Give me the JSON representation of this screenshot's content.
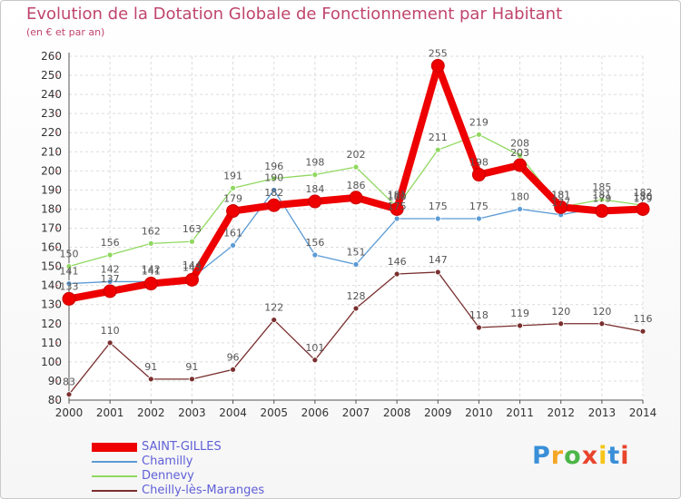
{
  "chart_data": {
    "type": "line",
    "title": "Evolution de la Dotation Globale de Fonctionnement par Habitant",
    "subtitle": "(en € et par an)",
    "x": [
      "2000",
      "2001",
      "2002",
      "2003",
      "2004",
      "2005",
      "2006",
      "2007",
      "2008",
      "2009",
      "2010",
      "2011",
      "2012",
      "2013",
      "2014"
    ],
    "ylim": [
      80,
      260
    ],
    "yticks": [
      80,
      90,
      100,
      110,
      120,
      130,
      140,
      150,
      160,
      170,
      180,
      190,
      200,
      210,
      220,
      230,
      240,
      250,
      260
    ],
    "grid": true,
    "legend_position": "bottom-left",
    "series": [
      {
        "name": "SAINT-GILLES",
        "color": "#ee0000",
        "values": [
          133,
          137,
          141,
          143,
          179,
          182,
          184,
          186,
          180,
          255,
          198,
          203,
          181,
          179,
          180
        ]
      },
      {
        "name": "Chamilly",
        "color": "#5b9bd5",
        "values": [
          141,
          142,
          142,
          144,
          161,
          190,
          156,
          151,
          175,
          175,
          175,
          180,
          177,
          181,
          179
        ]
      },
      {
        "name": "Dennevy",
        "color": "#90d860",
        "values": [
          150,
          156,
          162,
          163,
          191,
          196,
          198,
          202,
          181,
          211,
          219,
          208,
          181,
          185,
          182
        ]
      },
      {
        "name": "Cheilly-lès-Maranges",
        "color": "#7a2f2f",
        "values": [
          83,
          110,
          91,
          91,
          96,
          122,
          101,
          128,
          146,
          147,
          118,
          119,
          120,
          120,
          116
        ]
      }
    ]
  },
  "logo": {
    "letters": [
      "P",
      "r",
      "o",
      "x",
      "i",
      "t",
      "i"
    ],
    "colors": [
      "#3a8fd8",
      "#f5a623",
      "#4cb648",
      "#e8452c",
      "#f5c518",
      "#3a8fd8",
      "#e8452c"
    ]
  }
}
